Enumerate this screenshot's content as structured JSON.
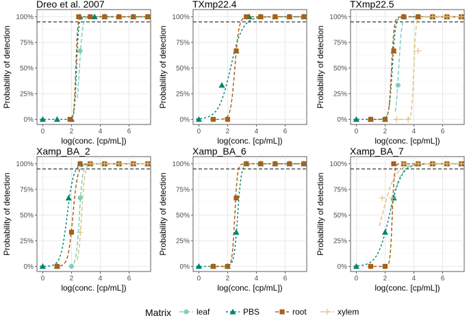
{
  "legend": {
    "title": "Matrix",
    "entries": [
      {
        "label": "leaf",
        "color": "#80cdc1",
        "shape": "circle",
        "dash": "6,3"
      },
      {
        "label": "PBS",
        "color": "#018571",
        "shape": "triangle",
        "dash": "3,3"
      },
      {
        "label": "root",
        "color": "#a6611a",
        "shape": "square",
        "dash": "5,3"
      },
      {
        "label": "xylem",
        "color": "#dfc27d",
        "shape": "plus",
        "dash": "6,3"
      }
    ]
  },
  "chart_data": [
    {
      "type": "line",
      "title": "Dreo et al. 2007",
      "xlabel": "log(conc. [cp/mL])",
      "ylabel": "Probability of detection",
      "xlim": [
        -0.4,
        7.5
      ],
      "ylim": [
        -0.05,
        1.07
      ],
      "xticks": [
        0,
        2,
        4,
        6
      ],
      "yticks": [
        "0%",
        "25%",
        "50%",
        "75%",
        "100%"
      ],
      "threshold": 0.95,
      "grid": true,
      "series": [
        {
          "name": "leaf",
          "points": [
            [
              2.6,
              0.667
            ],
            [
              3.3,
              1.0
            ],
            [
              4.3,
              1.0
            ],
            [
              5.3,
              1.0
            ],
            [
              6.3,
              1.0
            ],
            [
              7.3,
              1.0
            ]
          ],
          "curve": {
            "mid": 2.55,
            "k": 9
          }
        },
        {
          "name": "PBS",
          "points": [
            [
              0,
              0
            ],
            [
              1.0,
              0
            ],
            [
              2.0,
              0
            ],
            [
              2.6,
              1.0
            ],
            [
              3.6,
              1.0
            ],
            [
              4.3,
              1.0
            ],
            [
              5.3,
              1.0
            ],
            [
              6.3,
              1.0
            ],
            [
              7.3,
              1.0
            ]
          ],
          "curve": {
            "mid": 2.35,
            "k": 14
          }
        },
        {
          "name": "root",
          "points": [
            [
              1.9,
              0
            ],
            [
              2.5,
              1.0
            ],
            [
              3.3,
              1.0
            ],
            [
              4.3,
              1.0
            ],
            [
              5.3,
              1.0
            ],
            [
              6.3,
              1.0
            ],
            [
              7.3,
              1.0
            ]
          ],
          "curve": {
            "mid": 2.3,
            "k": 16
          }
        }
      ]
    },
    {
      "type": "line",
      "title": "TXmp22.4",
      "xlabel": "log(conc. [cp/mL])",
      "ylabel": "Probability of detection",
      "xlim": [
        -0.4,
        7.5
      ],
      "ylim": [
        -0.05,
        1.07
      ],
      "xticks": [
        0,
        2,
        4,
        6
      ],
      "yticks": [
        "0%",
        "25%",
        "50%",
        "75%",
        "100%"
      ],
      "threshold": 0.95,
      "grid": true,
      "series": [
        {
          "name": "PBS",
          "points": [
            [
              0,
              0
            ],
            [
              1.6,
              0.333
            ],
            [
              2.6,
              0.667
            ],
            [
              3.5,
              1.0
            ],
            [
              4.3,
              1.0
            ],
            [
              5.3,
              1.0
            ],
            [
              6.3,
              1.0
            ],
            [
              7.3,
              1.0
            ]
          ],
          "curve": {
            "mid": 2.2,
            "k": 2.4
          }
        },
        {
          "name": "root",
          "points": [
            [
              1.0,
              0
            ],
            [
              2.0,
              0
            ],
            [
              2.6,
              0.667
            ],
            [
              3.3,
              1.0
            ],
            [
              4.3,
              1.0
            ],
            [
              5.3,
              1.0
            ],
            [
              6.3,
              1.0
            ],
            [
              7.3,
              1.0
            ]
          ],
          "curve": {
            "mid": 2.5,
            "k": 7
          }
        }
      ]
    },
    {
      "type": "line",
      "title": "TXmp22.5",
      "xlabel": "log(conc. [cp/mL])",
      "ylabel": "Probability of detection",
      "xlim": [
        -0.4,
        7.5
      ],
      "ylim": [
        -0.05,
        1.07
      ],
      "xticks": [
        0,
        2,
        4,
        6
      ],
      "yticks": [
        "0%",
        "25%",
        "50%",
        "75%",
        "100%"
      ],
      "threshold": 0.95,
      "grid": true,
      "series": [
        {
          "name": "leaf",
          "points": [
            [
              2.9,
              0.333
            ],
            [
              3.3,
              1.0
            ],
            [
              4.3,
              1.0
            ],
            [
              5.3,
              1.0
            ],
            [
              6.3,
              1.0
            ],
            [
              7.3,
              1.0
            ]
          ],
          "curve": {
            "mid": 2.95,
            "k": 10
          }
        },
        {
          "name": "PBS",
          "points": [
            [
              0,
              0
            ],
            [
              1.0,
              0
            ],
            [
              2.0,
              0
            ],
            [
              2.6,
              0.667
            ],
            [
              3.3,
              1.0
            ],
            [
              4.3,
              1.0
            ],
            [
              5.3,
              1.0
            ],
            [
              6.3,
              1.0
            ],
            [
              7.3,
              1.0
            ]
          ],
          "curve": {
            "mid": 2.5,
            "k": 9
          }
        },
        {
          "name": "root",
          "points": [
            [
              1.0,
              0
            ],
            [
              2.0,
              0
            ],
            [
              2.6,
              0.667
            ],
            [
              3.3,
              1.0
            ],
            [
              4.3,
              1.0
            ],
            [
              5.3,
              1.0
            ],
            [
              6.3,
              1.0
            ],
            [
              7.3,
              1.0
            ]
          ],
          "curve": {
            "mid": 2.45,
            "k": 11
          }
        },
        {
          "name": "xylem",
          "points": [
            [
              2.8,
              0
            ],
            [
              3.6,
              0
            ],
            [
              4.3,
              0.667
            ],
            [
              5.3,
              1.0
            ],
            [
              6.3,
              1.0
            ],
            [
              7.3,
              1.0
            ]
          ],
          "curve": {
            "mid": 4.0,
            "k": 14
          }
        }
      ]
    },
    {
      "type": "line",
      "title": "Xamp_BA_2",
      "xlabel": "log(conc. [cp/mL])",
      "ylabel": "Probability of detection",
      "xlim": [
        -0.4,
        7.5
      ],
      "ylim": [
        -0.05,
        1.07
      ],
      "xticks": [
        0,
        2,
        4,
        6
      ],
      "yticks": [
        "0%",
        "25%",
        "50%",
        "75%",
        "100%"
      ],
      "threshold": 0.95,
      "grid": true,
      "series": [
        {
          "name": "leaf",
          "points": [
            [
              2.0,
              0
            ],
            [
              2.6,
              0.667
            ],
            [
              3.3,
              1.0
            ],
            [
              4.3,
              1.0
            ],
            [
              5.3,
              1.0
            ],
            [
              6.3,
              1.0
            ],
            [
              7.3,
              1.0
            ]
          ],
          "curve": {
            "mid": 2.55,
            "k": 9
          }
        },
        {
          "name": "PBS",
          "points": [
            [
              0,
              0
            ],
            [
              1.0,
              0
            ],
            [
              1.8,
              0.667
            ],
            [
              2.6,
              1.0
            ],
            [
              3.3,
              1.0
            ],
            [
              4.3,
              1.0
            ],
            [
              5.3,
              1.0
            ],
            [
              6.3,
              1.0
            ],
            [
              7.3,
              1.0
            ]
          ],
          "curve": {
            "mid": 1.7,
            "k": 4.5
          }
        },
        {
          "name": "root",
          "points": [
            [
              1.0,
              0
            ],
            [
              2.0,
              0.333
            ],
            [
              2.6,
              1.0
            ],
            [
              3.3,
              1.0
            ],
            [
              4.3,
              1.0
            ],
            [
              5.3,
              1.0
            ],
            [
              6.3,
              1.0
            ],
            [
              7.3,
              1.0
            ]
          ],
          "curve": {
            "mid": 2.1,
            "k": 6
          }
        },
        {
          "name": "xylem",
          "points": [
            [
              2.6,
              0.333
            ],
            [
              3.3,
              1.0
            ],
            [
              4.3,
              1.0
            ],
            [
              5.3,
              1.0
            ],
            [
              6.3,
              1.0
            ],
            [
              7.3,
              1.0
            ]
          ],
          "curve": {
            "mid": 2.7,
            "k": 9
          }
        }
      ]
    },
    {
      "type": "line",
      "title": "Xamp_BA_6",
      "xlabel": "log(conc. [cp/mL])",
      "ylabel": "Probability of detection",
      "xlim": [
        -0.4,
        7.5
      ],
      "ylim": [
        -0.05,
        1.07
      ],
      "xticks": [
        0,
        2,
        4,
        6
      ],
      "yticks": [
        "0%",
        "25%",
        "50%",
        "75%",
        "100%"
      ],
      "threshold": 0.95,
      "grid": true,
      "series": [
        {
          "name": "PBS",
          "points": [
            [
              0,
              0
            ],
            [
              1.0,
              0
            ],
            [
              2.0,
              0
            ],
            [
              2.6,
              0.333
            ],
            [
              3.3,
              1.0
            ],
            [
              4.3,
              1.0
            ],
            [
              5.3,
              1.0
            ],
            [
              6.3,
              1.0
            ],
            [
              7.3,
              1.0
            ]
          ],
          "curve": {
            "mid": 2.7,
            "k": 8
          }
        },
        {
          "name": "root",
          "points": [
            [
              1.0,
              0
            ],
            [
              2.0,
              0
            ],
            [
              2.6,
              0.667
            ],
            [
              3.3,
              1.0
            ],
            [
              4.3,
              1.0
            ],
            [
              5.3,
              1.0
            ],
            [
              6.3,
              1.0
            ],
            [
              7.3,
              1.0
            ]
          ],
          "curve": {
            "mid": 2.5,
            "k": 11
          }
        }
      ]
    },
    {
      "type": "line",
      "title": "Xamp_BA_7",
      "xlabel": "log(conc. [cp/mL])",
      "ylabel": "Probability of detection",
      "xlim": [
        -0.4,
        7.5
      ],
      "ylim": [
        -0.05,
        1.07
      ],
      "xticks": [
        0,
        2,
        4,
        6
      ],
      "yticks": [
        "0%",
        "25%",
        "50%",
        "75%",
        "100%"
      ],
      "threshold": 0.95,
      "grid": true,
      "series": [
        {
          "name": "leaf",
          "points": [
            [
              2.6,
              0.667
            ],
            [
              3.3,
              1.0
            ],
            [
              4.3,
              1.0
            ],
            [
              5.3,
              1.0
            ],
            [
              6.3,
              1.0
            ],
            [
              7.3,
              1.0
            ]
          ],
          "curve": {
            "mid": 2.3,
            "k": 2.6
          }
        },
        {
          "name": "PBS",
          "points": [
            [
              0,
              0
            ],
            [
              2.0,
              0.333
            ],
            [
              2.6,
              0.667
            ],
            [
              3.3,
              1.0
            ],
            [
              4.3,
              1.0
            ],
            [
              5.3,
              1.0
            ],
            [
              6.3,
              1.0
            ],
            [
              7.3,
              1.0
            ]
          ],
          "curve": {
            "mid": 2.3,
            "k": 2.4
          }
        },
        {
          "name": "root",
          "points": [
            [
              1.0,
              0
            ],
            [
              2.0,
              0
            ],
            [
              2.6,
              1.0
            ],
            [
              3.3,
              1.0
            ],
            [
              4.3,
              1.0
            ],
            [
              5.3,
              1.0
            ],
            [
              6.3,
              1.0
            ],
            [
              7.3,
              1.0
            ]
          ],
          "curve": {
            "mid": 2.5,
            "k": 14
          }
        },
        {
          "name": "xylem",
          "points": [
            [
              1.8,
              0.667
            ],
            [
              2.5,
              0.667
            ],
            [
              3.3,
              1.0
            ],
            [
              4.3,
              1.0
            ],
            [
              5.3,
              1.0
            ],
            [
              6.3,
              1.0
            ],
            [
              7.3,
              1.0
            ]
          ],
          "curve": {
            "mid": 1.8,
            "k": 2.2
          }
        }
      ]
    }
  ]
}
